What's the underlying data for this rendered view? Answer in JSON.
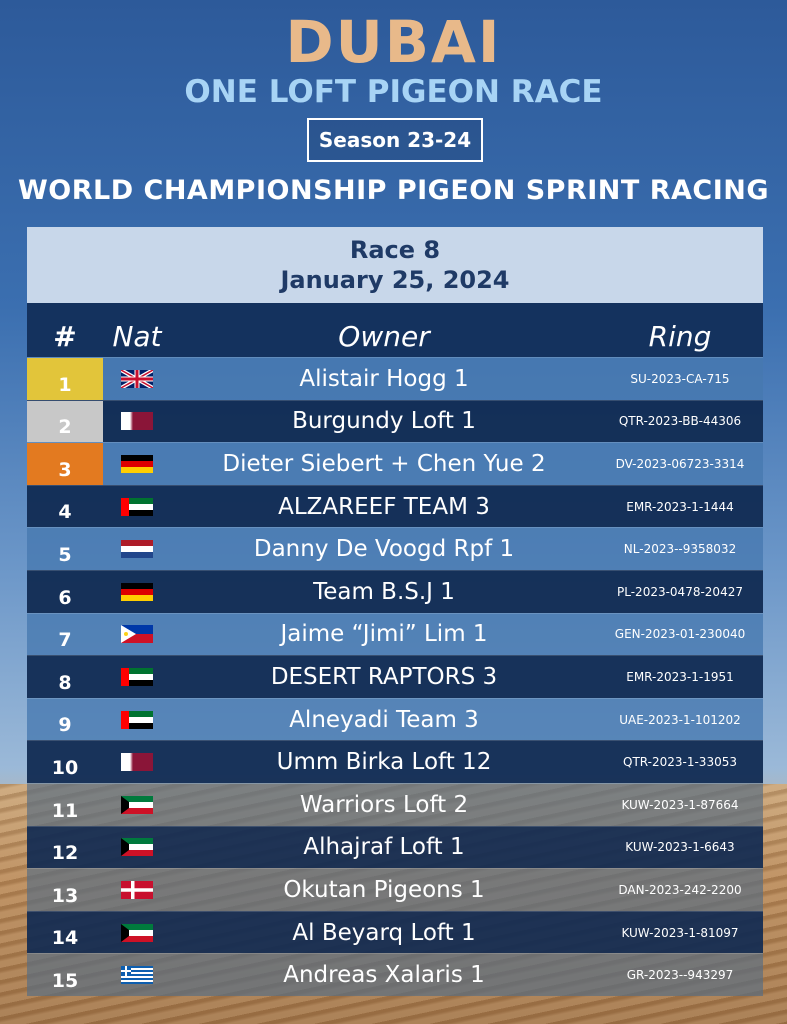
{
  "header": {
    "title": "DUBAI",
    "subtitle": "ONE LOFT PIGEON RACE",
    "season": "Season 23-24",
    "championship": "WORLD CHAMPIONSHIP PIGEON SPRINT RACING"
  },
  "race": {
    "name": "Race 8",
    "date": "January 25, 2024"
  },
  "columns": {
    "num": "#",
    "nat": "Nat",
    "owner": "Owner",
    "ring": "Ring"
  },
  "colors": {
    "gold": "#e2c53a",
    "silver": "#c8c8c8",
    "bronze": "#e37a20",
    "dark_row": "#102a52",
    "header_bg": "#c8d7ea",
    "title": "#e8b98a",
    "subtitle": "#a8d4f5"
  },
  "results": [
    {
      "pos": "1",
      "flag": "uk-flag-icon",
      "owner": "Alistair Hogg 1",
      "ring": "SU-2023-CA-715"
    },
    {
      "pos": "2",
      "flag": "qatar-flag-icon",
      "owner": "Burgundy Loft 1",
      "ring": "QTR-2023-BB-44306"
    },
    {
      "pos": "3",
      "flag": "germany-flag-icon",
      "owner": "Dieter Siebert + Chen Yue 2",
      "ring": "DV-2023-06723-3314"
    },
    {
      "pos": "4",
      "flag": "uae-flag-icon",
      "owner": "ALZAREEF TEAM 3",
      "ring": "EMR-2023-1-1444"
    },
    {
      "pos": "5",
      "flag": "netherlands-flag-icon",
      "owner": "Danny De Voogd Rpf 1",
      "ring": "NL-2023--9358032"
    },
    {
      "pos": "6",
      "flag": "germany-flag-icon",
      "owner": "Team B.S.J 1",
      "ring": "PL-2023-0478-20427"
    },
    {
      "pos": "7",
      "flag": "philippines-flag-icon",
      "owner": "Jaime “Jimi” Lim 1",
      "ring": "GEN-2023-01-230040"
    },
    {
      "pos": "8",
      "flag": "uae-flag-icon",
      "owner": "DESERT RAPTORS 3",
      "ring": "EMR-2023-1-1951"
    },
    {
      "pos": "9",
      "flag": "uae-flag-icon",
      "owner": "Alneyadi Team 3",
      "ring": "UAE-2023-1-101202"
    },
    {
      "pos": "10",
      "flag": "qatar-flag-icon",
      "owner": "Umm Birka Loft 12",
      "ring": "QTR-2023-1-33053"
    },
    {
      "pos": "11",
      "flag": "kuwait-flag-icon",
      "owner": "Warriors Loft 2",
      "ring": "KUW-2023-1-87664"
    },
    {
      "pos": "12",
      "flag": "kuwait-flag-icon",
      "owner": "Alhajraf Loft 1",
      "ring": "KUW-2023-1-6643"
    },
    {
      "pos": "13",
      "flag": "denmark-flag-icon",
      "owner": "Okutan Pigeons 1",
      "ring": "DAN-2023-242-2200"
    },
    {
      "pos": "14",
      "flag": "kuwait-flag-icon",
      "owner": "Al Beyarq Loft 1",
      "ring": "KUW-2023-1-81097"
    },
    {
      "pos": "15",
      "flag": "greece-flag-icon",
      "owner": "Andreas Xalaris 1",
      "ring": "GR-2023--943297"
    }
  ]
}
